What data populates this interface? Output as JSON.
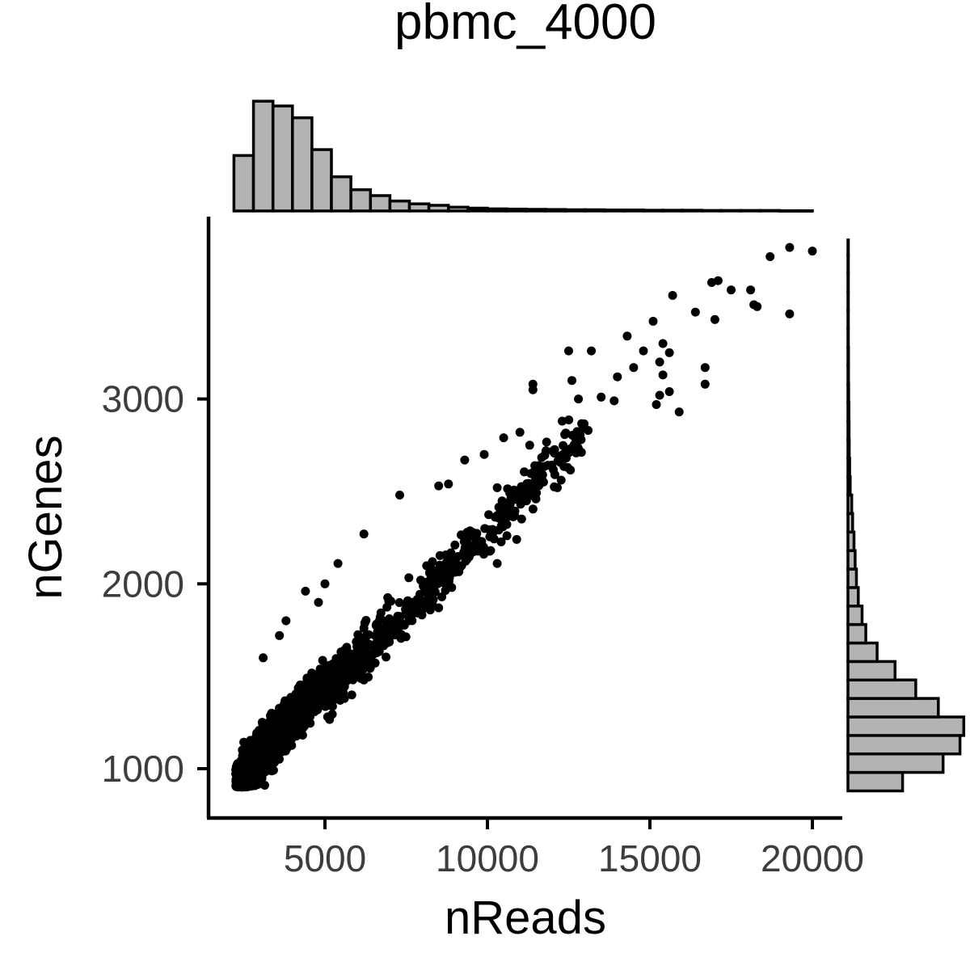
{
  "chart_data": {
    "type": "scatter",
    "title": "pbmc_4000",
    "xlabel": "nReads",
    "ylabel": "nGenes",
    "xlim": [
      1400,
      21000
    ],
    "ylim": [
      880,
      3860
    ],
    "x_ticks": [
      5000,
      10000,
      15000,
      20000
    ],
    "x_tick_labels": [
      "5000",
      "10000",
      "15000",
      "20000"
    ],
    "y_ticks": [
      1000,
      2000,
      3000
    ],
    "y_tick_labels": [
      "1000",
      "2000",
      "3000"
    ],
    "grid": false,
    "legend": "none",
    "point_color": "#000000",
    "histogram_fill": "#b3b3b3",
    "histogram_edge": "#000000",
    "marginal_x_histogram": {
      "bin_edges": [
        2200,
        2800,
        3400,
        4000,
        4600,
        5200,
        5800,
        6400,
        7000,
        7600,
        8200,
        8800,
        9400,
        10000,
        10600,
        11200,
        11800,
        12400,
        13000,
        13600,
        14200,
        14800,
        15400,
        16000,
        16600,
        17200,
        17800,
        18400,
        19000,
        19600,
        20000
      ],
      "counts": [
        235,
        465,
        445,
        395,
        260,
        145,
        90,
        65,
        42,
        30,
        24,
        16,
        12,
        9,
        8,
        7,
        6,
        5,
        5,
        4,
        4,
        3,
        3,
        3,
        2,
        2,
        2,
        2,
        1,
        1
      ]
    },
    "marginal_y_histogram": {
      "bin_edges": [
        880,
        980,
        1080,
        1180,
        1280,
        1380,
        1480,
        1580,
        1680,
        1780,
        1880,
        1980,
        2080,
        2180,
        2280,
        2380,
        2480,
        2580,
        2680,
        2780,
        2880,
        2980,
        3080,
        3180,
        3280,
        3380,
        3480,
        3580,
        3680,
        3780,
        3860
      ],
      "counts": [
        290,
        505,
        595,
        615,
        480,
        360,
        250,
        155,
        95,
        75,
        55,
        45,
        38,
        32,
        25,
        20,
        12,
        9,
        7,
        6,
        5,
        4,
        3,
        3,
        2,
        2,
        2,
        1,
        1,
        1
      ]
    },
    "outlier_points": [
      {
        "x": 20000,
        "y": 3800
      },
      {
        "x": 19300,
        "y": 3820
      },
      {
        "x": 18700,
        "y": 3770
      },
      {
        "x": 19300,
        "y": 3460
      },
      {
        "x": 18100,
        "y": 3590
      },
      {
        "x": 18200,
        "y": 3510
      },
      {
        "x": 18300,
        "y": 3500
      },
      {
        "x": 17500,
        "y": 3590
      },
      {
        "x": 16900,
        "y": 3630
      },
      {
        "x": 17100,
        "y": 3640
      },
      {
        "x": 16400,
        "y": 3470
      },
      {
        "x": 17000,
        "y": 3430
      },
      {
        "x": 15700,
        "y": 3560
      },
      {
        "x": 15100,
        "y": 3420
      },
      {
        "x": 15400,
        "y": 3300
      },
      {
        "x": 15600,
        "y": 3250
      },
      {
        "x": 15300,
        "y": 3200
      },
      {
        "x": 16700,
        "y": 3170
      },
      {
        "x": 16700,
        "y": 3080
      },
      {
        "x": 15400,
        "y": 3130
      },
      {
        "x": 15600,
        "y": 3040
      },
      {
        "x": 15300,
        "y": 3020
      },
      {
        "x": 15200,
        "y": 2970
      },
      {
        "x": 15900,
        "y": 2930
      },
      {
        "x": 14300,
        "y": 3340
      },
      {
        "x": 14800,
        "y": 3260
      },
      {
        "x": 14500,
        "y": 3170
      },
      {
        "x": 14000,
        "y": 3120
      },
      {
        "x": 13200,
        "y": 3260
      },
      {
        "x": 12500,
        "y": 3260
      },
      {
        "x": 12600,
        "y": 3100
      },
      {
        "x": 11400,
        "y": 3080
      },
      {
        "x": 11400,
        "y": 3050
      },
      {
        "x": 13500,
        "y": 3010
      },
      {
        "x": 13900,
        "y": 2990
      },
      {
        "x": 12800,
        "y": 3000
      },
      {
        "x": 13100,
        "y": 2830
      },
      {
        "x": 12300,
        "y": 2880
      },
      {
        "x": 11000,
        "y": 2820
      },
      {
        "x": 11300,
        "y": 2750
      },
      {
        "x": 10500,
        "y": 2790
      },
      {
        "x": 11800,
        "y": 2720
      },
      {
        "x": 12800,
        "y": 2730
      },
      {
        "x": 11700,
        "y": 2590
      },
      {
        "x": 10700,
        "y": 2430
      },
      {
        "x": 10300,
        "y": 2520
      },
      {
        "x": 9900,
        "y": 2700
      },
      {
        "x": 9300,
        "y": 2670
      },
      {
        "x": 8500,
        "y": 2530
      },
      {
        "x": 8800,
        "y": 2540
      },
      {
        "x": 7300,
        "y": 2480
      },
      {
        "x": 10600,
        "y": 2260
      },
      {
        "x": 10900,
        "y": 2240
      },
      {
        "x": 10100,
        "y": 2180
      },
      {
        "x": 10300,
        "y": 2110
      },
      {
        "x": 9000,
        "y": 2210
      },
      {
        "x": 9300,
        "y": 2150
      },
      {
        "x": 6200,
        "y": 2270
      },
      {
        "x": 5400,
        "y": 2110
      },
      {
        "x": 5000,
        "y": 2000
      },
      {
        "x": 4400,
        "y": 1960
      },
      {
        "x": 8700,
        "y": 2000
      },
      {
        "x": 8200,
        "y": 2090
      },
      {
        "x": 7700,
        "y": 1900
      },
      {
        "x": 8500,
        "y": 1870
      },
      {
        "x": 8900,
        "y": 1980
      },
      {
        "x": 7200,
        "y": 1760
      },
      {
        "x": 6900,
        "y": 1680
      },
      {
        "x": 6500,
        "y": 1620
      },
      {
        "x": 6000,
        "y": 1500
      },
      {
        "x": 6200,
        "y": 1480
      },
      {
        "x": 5600,
        "y": 1380
      },
      {
        "x": 3800,
        "y": 1800
      },
      {
        "x": 3600,
        "y": 1720
      },
      {
        "x": 3100,
        "y": 1600
      },
      {
        "x": 4800,
        "y": 1900
      },
      {
        "x": 7400,
        "y": 1780
      },
      {
        "x": 6700,
        "y": 1820
      }
    ]
  }
}
